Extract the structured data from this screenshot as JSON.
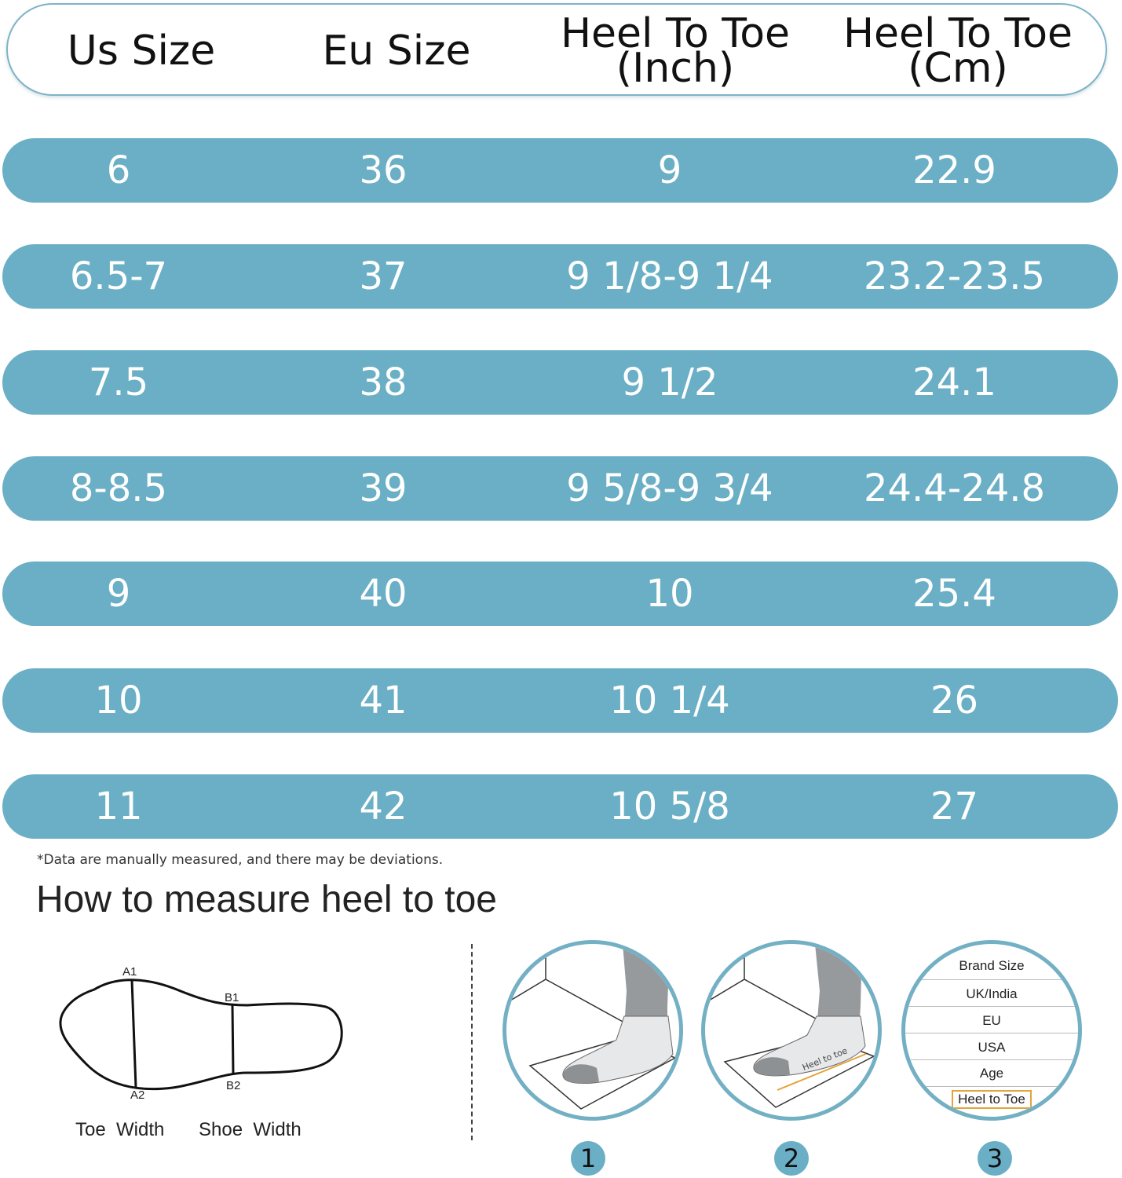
{
  "headers": {
    "us": "Us Size",
    "eu": "Eu Size",
    "inch_1": "Heel To Toe",
    "inch_2": "(Inch)",
    "cm_1": "Heel To Toe",
    "cm_2": "(Cm)"
  },
  "rows": [
    {
      "us": "6",
      "eu": "36",
      "inch": "9",
      "cm": "22.9"
    },
    {
      "us": "6.5-7",
      "eu": "37",
      "inch": "9 1/8-9 1/4",
      "cm": "23.2-23.5"
    },
    {
      "us": "7.5",
      "eu": "38",
      "inch": "9 1/2",
      "cm": "24.1"
    },
    {
      "us": "8-8.5",
      "eu": "39",
      "inch": "9 5/8-9 3/4",
      "cm": "24.4-24.8"
    },
    {
      "us": "9",
      "eu": "40",
      "inch": "10",
      "cm": "25.4"
    },
    {
      "us": "10",
      "eu": "41",
      "inch": "10 1/4",
      "cm": "26"
    },
    {
      "us": "11",
      "eu": "42",
      "inch": "10 5/8",
      "cm": "27"
    }
  ],
  "note": "*Data are manually measured, and there may be deviations.",
  "howto_title": "How to measure heel to toe",
  "sole": {
    "a1": "A1",
    "a2": "A2",
    "b1": "B1",
    "b2": "B2",
    "toe_width": "Toe  Width",
    "shoe_width": "Shoe  Width"
  },
  "steps": {
    "step1": "1",
    "step2": "2",
    "step3": "3",
    "mat_label": "Heel to toe",
    "size_table": [
      "Brand Size",
      "UK/India",
      "EU",
      "USA",
      "Age",
      "Heel to Toe"
    ]
  },
  "colors": {
    "row_fill": "#6aafc5",
    "header_border": "#7fb3c6",
    "highlight": "#e3a43b"
  }
}
